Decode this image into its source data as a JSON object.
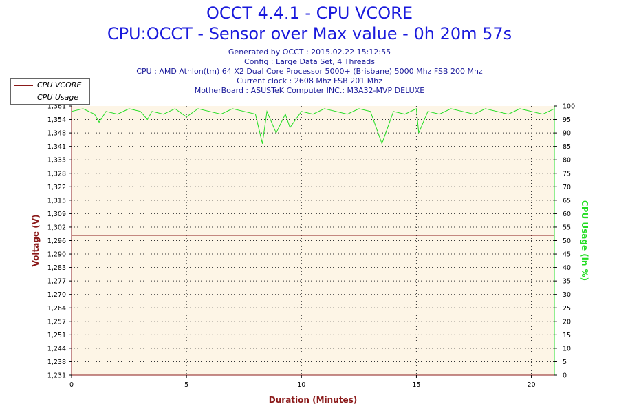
{
  "title": "OCCT 4.4.1 - CPU VCORE",
  "subtitle": "CPU:OCCT - Sensor over Max value - 0h 20m 57s",
  "info_lines": [
    "Generated by OCCT : 2015.02.22 15:12:55",
    "Config : Large Data Set, 4 Threads",
    "CPU : AMD Athlon(tm) 64 X2 Dual Core Processor 5000+ (Brisbane) 5000 Mhz FSB 200 Mhz",
    "Current clock : 2608 Mhz FSB 201 Mhz",
    "MotherBoard : ASUSTeK Computer INC.: M3A32-MVP DELUXE"
  ],
  "colors": {
    "title": "#1a1adc",
    "info": "#1a1a9a",
    "vcore": "#8b1a1a",
    "usage": "#22dd22",
    "plot_bg": "#fdf5e6",
    "axis_left": "#8b1a1a",
    "axis_right": "#22dd22",
    "axis_bottom": "#8b1a1a"
  },
  "chart_data": {
    "type": "line",
    "xlabel": "Duration (Minutes)",
    "ylabel_left": "Voltage (V)",
    "ylabel_right": "CPU Usage (in %)",
    "xlim": [
      0,
      21
    ],
    "ylim_left": [
      1.231,
      1.361
    ],
    "ylim_right": [
      0,
      100
    ],
    "x_ticks": [
      0,
      5,
      10,
      15,
      20
    ],
    "y_left_ticks": [
      "1,231",
      "1,238",
      "1,244",
      "1,251",
      "1,257",
      "1,264",
      "1,270",
      "1,277",
      "1,283",
      "1,290",
      "1,296",
      "1,302",
      "1,309",
      "1,315",
      "1,322",
      "1,328",
      "1,335",
      "1,341",
      "1,348",
      "1,354",
      "1,361"
    ],
    "y_right_ticks": [
      "0",
      "5",
      "10",
      "15",
      "20",
      "25",
      "30",
      "35",
      "40",
      "45",
      "50",
      "55",
      "60",
      "65",
      "70",
      "75",
      "80",
      "85",
      "90",
      "95",
      "100"
    ],
    "grid": true,
    "legend_position": "top-left",
    "series": [
      {
        "name": "CPU VCORE",
        "axis": "left",
        "x": [
          0,
          21
        ],
        "y": [
          1.2985,
          1.2985
        ]
      },
      {
        "name": "CPU Usage",
        "axis": "right",
        "x": [
          0,
          0.5,
          1.0,
          1.2,
          1.5,
          2.0,
          2.5,
          3.0,
          3.3,
          3.5,
          4.0,
          4.5,
          5.0,
          5.5,
          6.0,
          6.5,
          7.0,
          7.5,
          8.0,
          8.3,
          8.5,
          8.9,
          9.3,
          9.5,
          10.0,
          10.5,
          11.0,
          11.5,
          12.0,
          12.5,
          13.0,
          13.5,
          14.0,
          14.5,
          15.0,
          15.1,
          15.5,
          16.0,
          16.5,
          17.0,
          17.5,
          18.0,
          18.5,
          19.0,
          19.5,
          20.0,
          20.5,
          21.0
        ],
        "y": [
          98,
          99,
          97,
          94,
          98,
          97,
          99,
          98,
          95,
          98,
          97,
          99,
          96,
          99,
          98,
          97,
          99,
          98,
          97,
          86,
          98,
          90,
          97,
          92,
          98,
          97,
          99,
          98,
          97,
          99,
          98,
          86,
          98,
          97,
          99,
          90,
          98,
          97,
          99,
          98,
          97,
          99,
          98,
          97,
          99,
          98,
          97,
          99
        ]
      }
    ]
  }
}
